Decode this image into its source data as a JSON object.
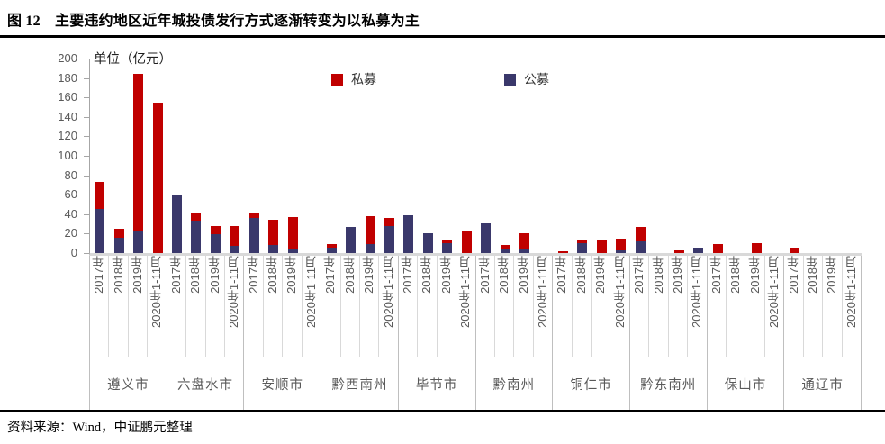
{
  "header": {
    "title": "图 12　主要违约地区近年城投债发行方式逐渐转变为以私募为主"
  },
  "footer": {
    "text": "资料来源：Wind，中证鹏元整理"
  },
  "chart_data": {
    "type": "bar",
    "stacked": true,
    "unit_label": "单位（亿元）",
    "ylim": [
      0,
      200
    ],
    "yticks": [
      200,
      180,
      160,
      140,
      120,
      100,
      80,
      60,
      40,
      20,
      0
    ],
    "grid": false,
    "legend_position": "top-center",
    "year_labels": [
      "2017年",
      "2018年",
      "2019年",
      "2020年1-11月"
    ],
    "series": [
      {
        "name": "私募",
        "color": "#c00000",
        "role": "top-segment"
      },
      {
        "name": "公募",
        "color": "#3a386b",
        "role": "bottom-segment"
      }
    ],
    "groups": [
      {
        "city": "遵义市",
        "gongmu": [
          45,
          16,
          23,
          0
        ],
        "simu": [
          28,
          9,
          161,
          155
        ]
      },
      {
        "city": "六盘水市",
        "gongmu": [
          60,
          33,
          19,
          7
        ],
        "simu": [
          0,
          9,
          9,
          21
        ]
      },
      {
        "city": "安顺市",
        "gongmu": [
          36,
          8,
          5,
          0
        ],
        "simu": [
          6,
          26,
          32,
          0
        ]
      },
      {
        "city": "黔西南州",
        "gongmu": [
          6,
          27,
          9,
          28
        ],
        "simu": [
          3,
          0,
          29,
          8
        ]
      },
      {
        "city": "毕节市",
        "gongmu": [
          39,
          20,
          10,
          0
        ],
        "simu": [
          0,
          0,
          3,
          23
        ]
      },
      {
        "city": "黔南州",
        "gongmu": [
          31,
          5,
          5,
          0
        ],
        "simu": [
          0,
          3,
          15,
          0
        ]
      },
      {
        "city": "铜仁市",
        "gongmu": [
          0,
          10,
          0,
          3
        ],
        "simu": [
          2,
          3,
          14,
          12
        ]
      },
      {
        "city": "黔东南州",
        "gongmu": [
          12,
          0,
          0,
          6
        ],
        "simu": [
          15,
          0,
          3,
          0
        ]
      },
      {
        "city": "保山市",
        "gongmu": [
          0,
          0,
          0,
          0
        ],
        "simu": [
          9,
          0,
          10,
          0
        ]
      },
      {
        "city": "通辽市",
        "gongmu": [
          0,
          0,
          0,
          0
        ],
        "simu": [
          6,
          0,
          0,
          0
        ]
      }
    ],
    "axis_colors": {
      "axis_line": "#a6a6a6",
      "baseline": "#d9d9d9",
      "tick_text": "#595959"
    }
  }
}
